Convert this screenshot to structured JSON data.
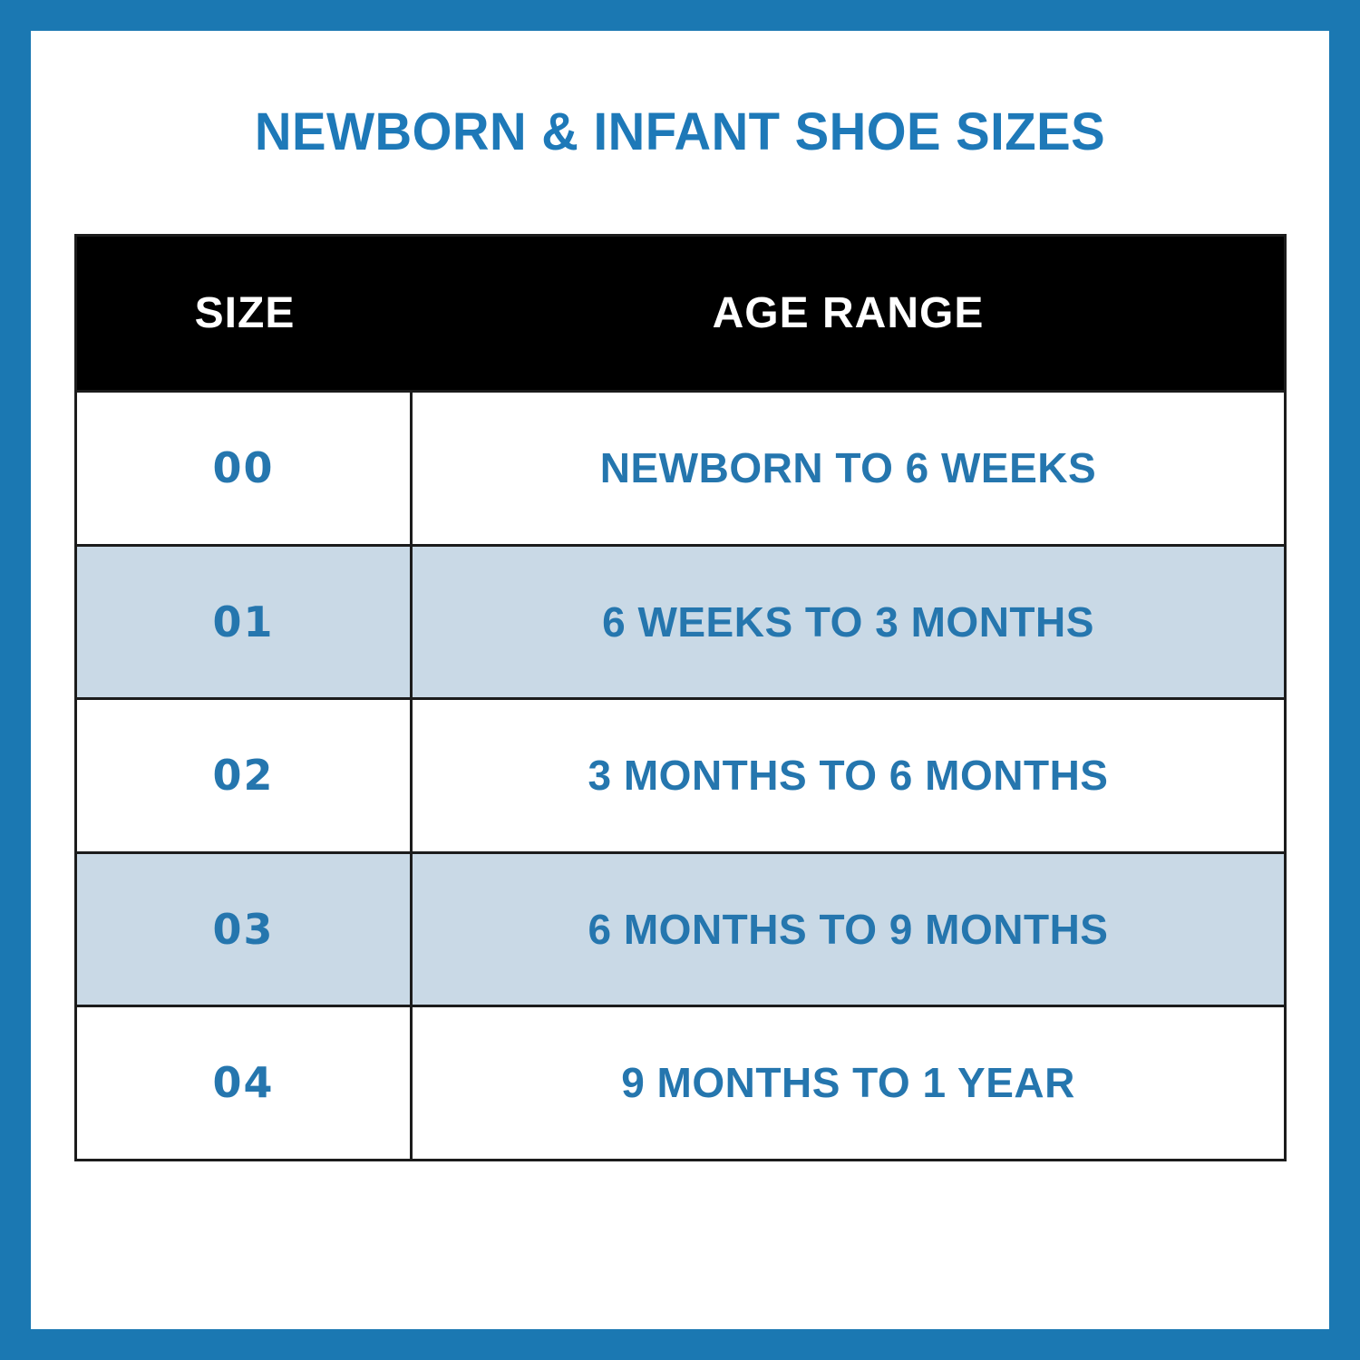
{
  "title": "NEWBORN & INFANT SHOE SIZES",
  "colors": {
    "frame_blue": "#1b78b2",
    "title_blue": "#1e79b8",
    "text_blue": "#2576ae",
    "header_bg": "#000000",
    "header_text": "#ffffff",
    "row_bg": "#ffffff",
    "row_alt_bg": "#c9d9e6",
    "grid_line": "#1c1c1c"
  },
  "table": {
    "columns": [
      "SIZE",
      "AGE RANGE"
    ],
    "rows": [
      {
        "size": "00",
        "age_range": "NEWBORN TO 6 WEEKS",
        "highlighted": false
      },
      {
        "size": "01",
        "age_range": "6 WEEKS TO 3 MONTHS",
        "highlighted": true
      },
      {
        "size": "02",
        "age_range": "3 MONTHS TO 6 MONTHS",
        "highlighted": false
      },
      {
        "size": "03",
        "age_range": "6 MONTHS TO 9 MONTHS",
        "highlighted": true
      },
      {
        "size": "04",
        "age_range": "9 MONTHS TO 1 YEAR",
        "highlighted": false
      }
    ]
  }
}
